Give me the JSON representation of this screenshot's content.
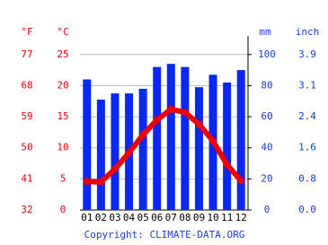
{
  "chart_data": {
    "type": "bar",
    "header_f": "°F",
    "header_c": "°C",
    "header_mm": "mm",
    "header_inch": "inch",
    "copyright": "Copyright: CLIMATE-DATA.ORG",
    "categories": [
      "01",
      "02",
      "03",
      "04",
      "05",
      "06",
      "07",
      "08",
      "09",
      "10",
      "11",
      "12"
    ],
    "series": [
      {
        "type": "bar",
        "color": "#0a28f0",
        "axis": "y2",
        "values": [
          84,
          71,
          75,
          75,
          78,
          92,
          94,
          92,
          79,
          87,
          82,
          90
        ]
      },
      {
        "type": "line",
        "color": "#ee0000",
        "values": [
          4.6,
          4.5,
          6.6,
          9.2,
          12.1,
          14.5,
          16.2,
          15.7,
          13.8,
          11.1,
          7.3,
          4.7
        ]
      }
    ],
    "ylim": [
      0,
      28
    ],
    "yticks": [
      0,
      5,
      10,
      15,
      20,
      25
    ],
    "fticks": [
      32,
      41,
      50,
      59,
      68,
      77
    ],
    "y2lim": [
      0,
      112
    ],
    "y2ticks": [
      0,
      20,
      40,
      60,
      80,
      100
    ],
    "inchticks": [
      {
        "value": 0,
        "label": "0.0"
      },
      {
        "value": 0.8,
        "label": "0.8"
      },
      {
        "value": 1.6,
        "label": "1.6"
      },
      {
        "value": 2.4,
        "label": "2.4"
      },
      {
        "value": 3.1,
        "label": "3.1"
      },
      {
        "value": 3.9,
        "label": "3.9"
      }
    ],
    "grid": true
  }
}
